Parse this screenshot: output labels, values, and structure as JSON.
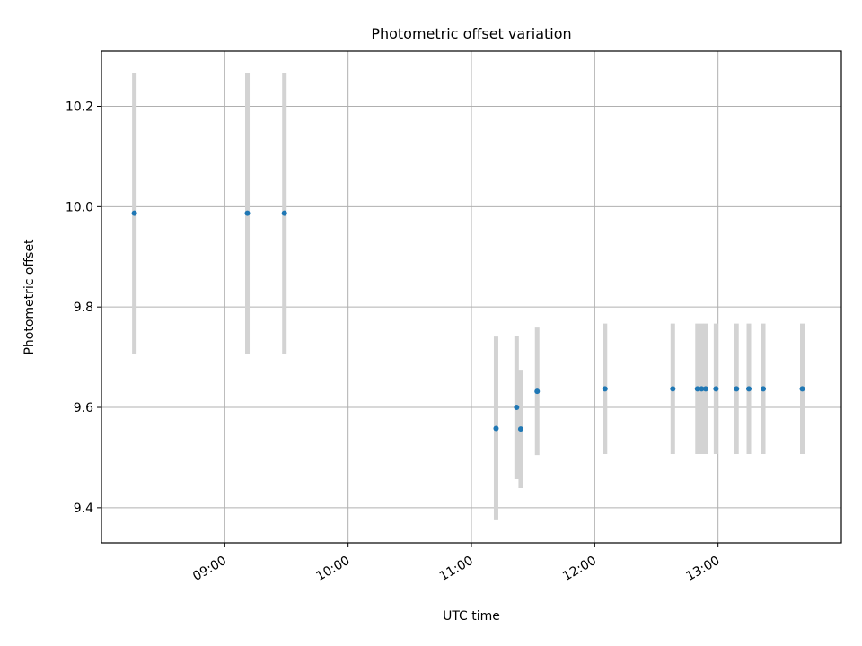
{
  "chart_data": {
    "type": "scatter",
    "title": "Photometric offset variation",
    "xlabel": "UTC time",
    "ylabel": "Photometric offset",
    "x_axis_type": "time",
    "xlim": [
      "08:00",
      "14:00"
    ],
    "ylim": [
      9.33,
      10.31
    ],
    "x_ticks": [
      "09:00",
      "10:00",
      "11:00",
      "12:00",
      "13:00"
    ],
    "y_ticks": [
      9.4,
      9.6,
      9.8,
      10.0,
      10.2
    ],
    "y_tick_labels": [
      "9.4",
      "9.6",
      "9.8",
      "10.0",
      "10.2"
    ],
    "grid": true,
    "legend": false,
    "colors": {
      "points": "#1f77b4",
      "errorbars": "#d3d3d3",
      "grid": "#b0b0b0"
    },
    "series": [
      {
        "points": [
          {
            "x": "08:16",
            "y": 9.987,
            "err": 0.28
          },
          {
            "x": "09:11",
            "y": 9.987,
            "err": 0.28
          },
          {
            "x": "09:29",
            "y": 9.987,
            "err": 0.28
          },
          {
            "x": "11:12",
            "y": 9.558,
            "err": 0.183
          },
          {
            "x": "11:22",
            "y": 9.6,
            "err": 0.143
          },
          {
            "x": "11:24",
            "y": 9.557,
            "err": 0.118
          },
          {
            "x": "11:32",
            "y": 9.632,
            "err": 0.127
          },
          {
            "x": "12:05",
            "y": 9.637,
            "err": 0.13
          },
          {
            "x": "12:38",
            "y": 9.637,
            "err": 0.13
          },
          {
            "x": "12:50",
            "y": 9.637,
            "err": 0.13
          },
          {
            "x": "12:52",
            "y": 9.637,
            "err": 0.13
          },
          {
            "x": "12:54",
            "y": 9.637,
            "err": 0.13
          },
          {
            "x": "12:59",
            "y": 9.637,
            "err": 0.13
          },
          {
            "x": "13:09",
            "y": 9.637,
            "err": 0.13
          },
          {
            "x": "13:15",
            "y": 9.637,
            "err": 0.13
          },
          {
            "x": "13:22",
            "y": 9.637,
            "err": 0.13
          },
          {
            "x": "13:41",
            "y": 9.637,
            "err": 0.13
          }
        ]
      }
    ]
  }
}
